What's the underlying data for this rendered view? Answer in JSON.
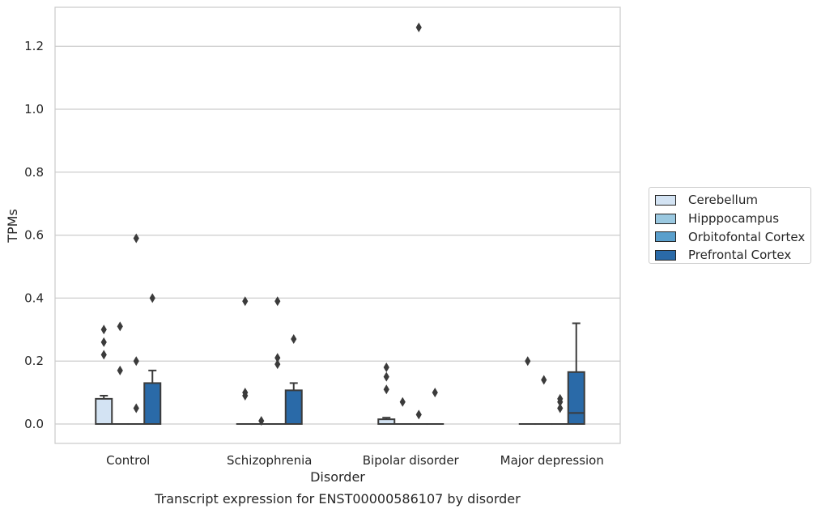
{
  "chart_data": {
    "type": "box",
    "title": "Transcript expression for ENST00000586107 by disorder",
    "xlabel": "Disorder",
    "ylabel": "TPMs",
    "ylim": [
      -0.06,
      1.32
    ],
    "yticks": [
      "0.0",
      "0.2",
      "0.4",
      "0.6",
      "0.8",
      "1.0",
      "1.2"
    ],
    "ytick_values": [
      0,
      0.2,
      0.4,
      0.6,
      0.8,
      1.0,
      1.2
    ],
    "categories": [
      "Control",
      "Schizophrenia",
      "Bipolar disorder",
      "Major depression"
    ],
    "grid": "horizontal",
    "legend_position": "right",
    "series": [
      {
        "name": "Cerebellum",
        "color": "#d3e3f3",
        "boxes": [
          {
            "q1": 0,
            "median": 0,
            "q3": 0.08,
            "whisker_low": 0,
            "whisker_high": 0.09,
            "outliers": [
              0.3,
              0.26,
              0.22
            ]
          },
          {
            "q1": 0,
            "median": 0,
            "q3": 0,
            "whisker_low": 0,
            "whisker_high": 0,
            "outliers": [
              0.39,
              0.1,
              0.09
            ]
          },
          {
            "q1": 0,
            "median": 0,
            "q3": 0.015,
            "whisker_low": 0,
            "whisker_high": 0.02,
            "outliers": [
              0.18,
              0.15,
              0.11
            ]
          },
          {
            "q1": 0,
            "median": 0,
            "q3": 0,
            "whisker_low": 0,
            "whisker_high": 0,
            "outliers": [
              0.2
            ]
          }
        ]
      },
      {
        "name": "Hipppocampus",
        "color": "#9ac8e0",
        "boxes": [
          {
            "q1": 0,
            "median": 0,
            "q3": 0,
            "whisker_low": 0,
            "whisker_high": 0,
            "outliers": [
              0.31,
              0.17
            ]
          },
          {
            "q1": 0,
            "median": 0,
            "q3": 0,
            "whisker_low": 0,
            "whisker_high": 0,
            "outliers": [
              0.01
            ]
          },
          {
            "q1": 0,
            "median": 0,
            "q3": 0,
            "whisker_low": 0,
            "whisker_high": 0,
            "outliers": [
              0.07
            ]
          },
          {
            "q1": 0,
            "median": 0,
            "q3": 0,
            "whisker_low": 0,
            "whisker_high": 0,
            "outliers": [
              0.14
            ]
          }
        ]
      },
      {
        "name": "Orbitofontal Cortex",
        "color": "#5a9fcc",
        "boxes": [
          {
            "q1": 0,
            "median": 0,
            "q3": 0,
            "whisker_low": 0,
            "whisker_high": 0,
            "outliers": [
              0.59,
              0.2,
              0.05
            ]
          },
          {
            "q1": 0,
            "median": 0,
            "q3": 0,
            "whisker_low": 0,
            "whisker_high": 0,
            "outliers": [
              0.39,
              0.21,
              0.19
            ]
          },
          {
            "q1": 0,
            "median": 0,
            "q3": 0,
            "whisker_low": 0,
            "whisker_high": 0,
            "outliers": [
              1.26,
              0.03
            ]
          },
          {
            "q1": 0,
            "median": 0,
            "q3": 0,
            "whisker_low": 0,
            "whisker_high": 0,
            "outliers": [
              0.08,
              0.07,
              0.05
            ]
          }
        ]
      },
      {
        "name": "Prefrontal Cortex",
        "color": "#2a6aa8",
        "boxes": [
          {
            "q1": 0,
            "median": 0,
            "q3": 0.13,
            "whisker_low": 0,
            "whisker_high": 0.17,
            "outliers": [
              0.4
            ]
          },
          {
            "q1": 0,
            "median": 0,
            "q3": 0.107,
            "whisker_low": 0,
            "whisker_high": 0.13,
            "outliers": [
              0.27
            ]
          },
          {
            "q1": 0,
            "median": 0,
            "q3": 0,
            "whisker_low": 0,
            "whisker_high": 0,
            "outliers": [
              0.1
            ]
          },
          {
            "q1": 0,
            "median": 0.035,
            "q3": 0.165,
            "whisker_low": 0,
            "whisker_high": 0.32,
            "outliers": []
          }
        ]
      }
    ]
  }
}
